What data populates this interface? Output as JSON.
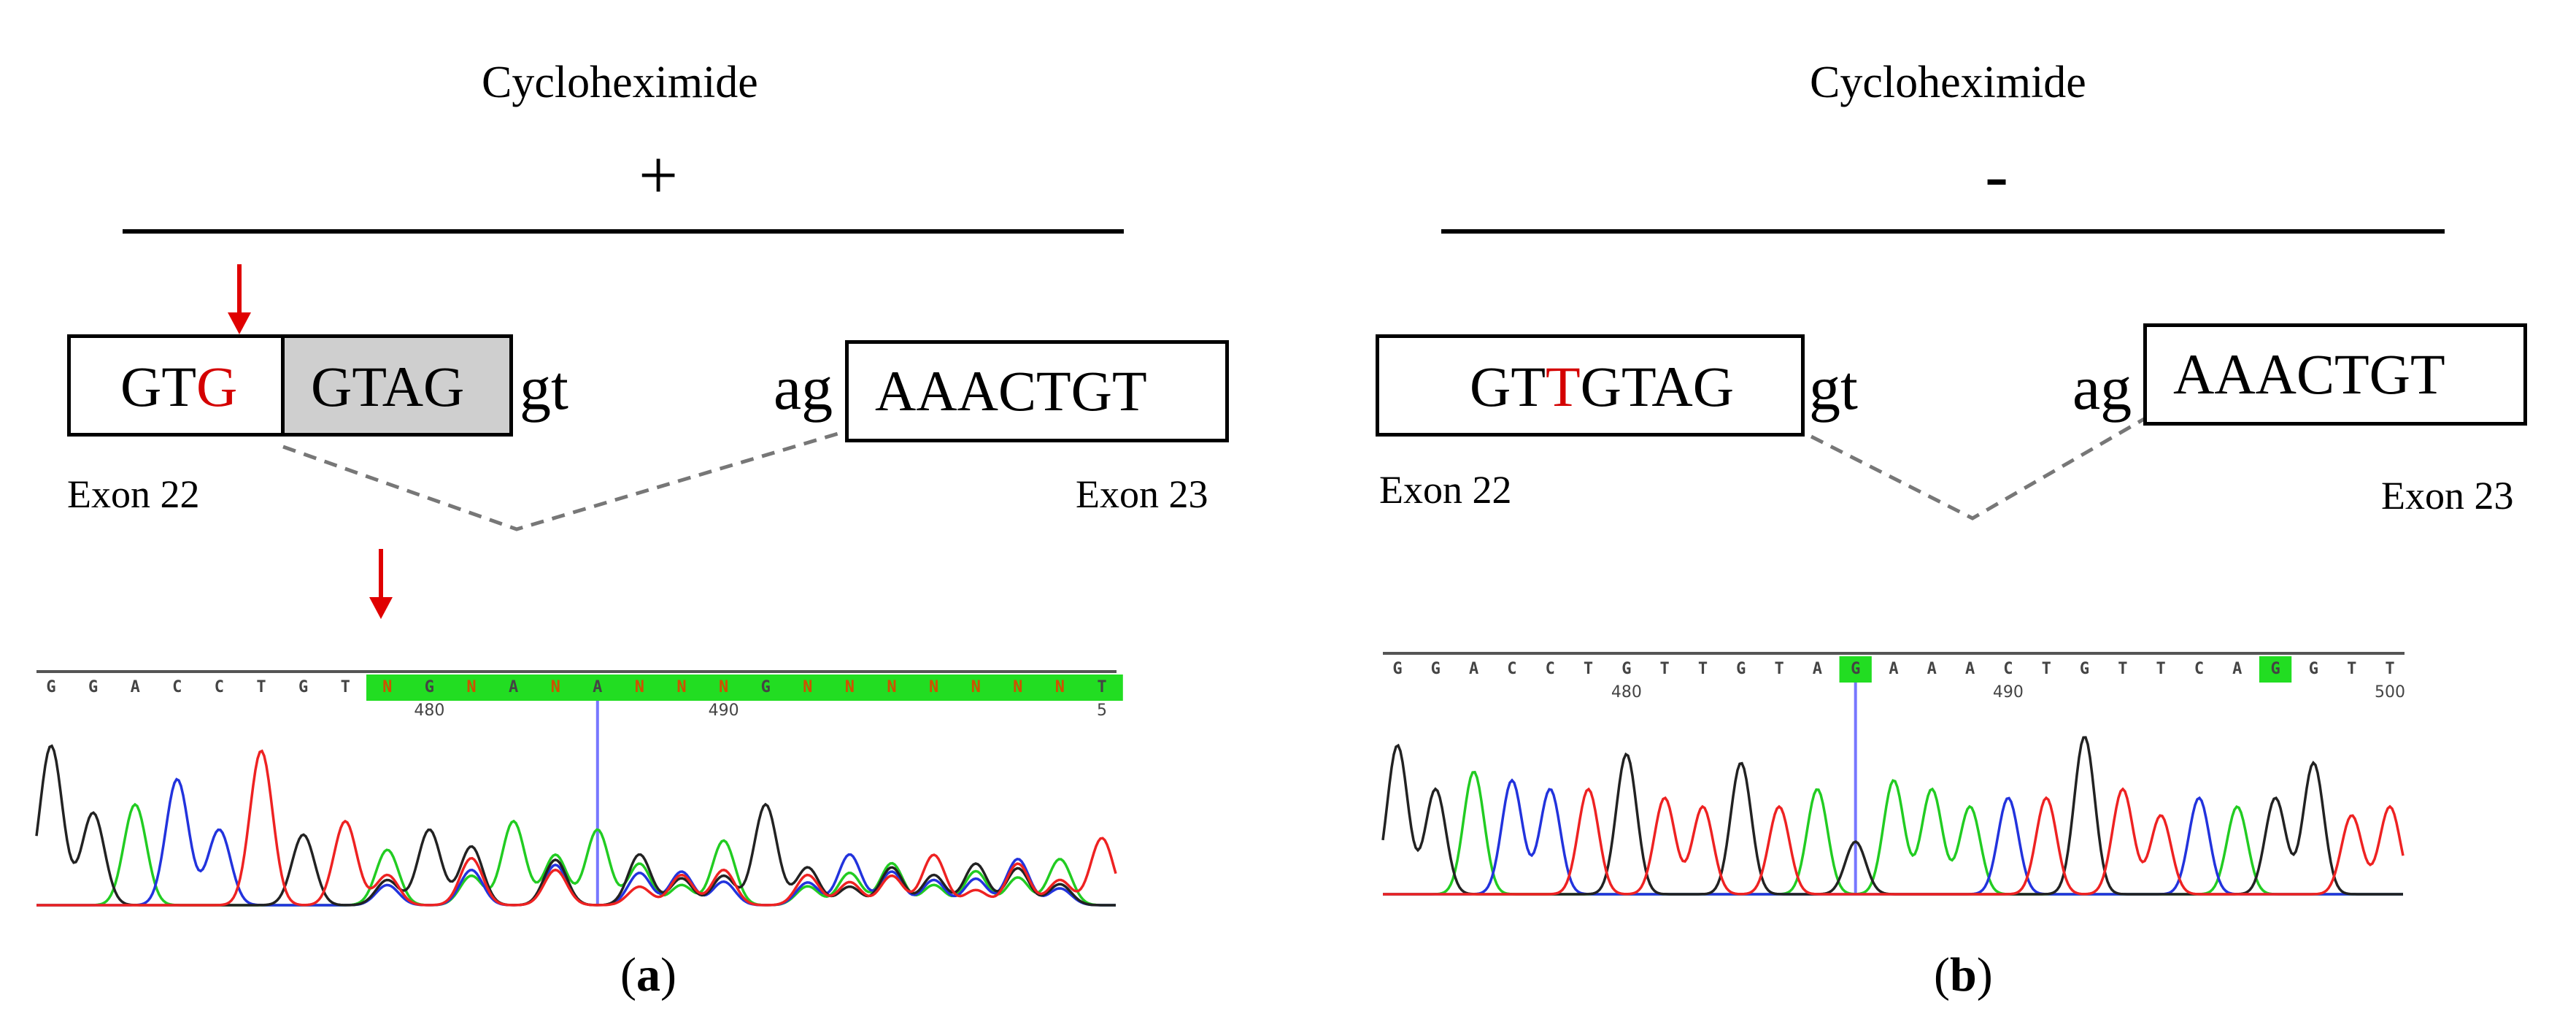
{
  "panel_a": {
    "title": "Cycloheximide",
    "sign": "+",
    "exon22": {
      "seq_prefix": "GT",
      "seq_mut": "G",
      "retained": "GTAG",
      "label": "Exon 22"
    },
    "intron_start": "gt",
    "intron_end": "ag",
    "exon23": {
      "seq": "AAACTGT",
      "label": "Exon 23"
    },
    "chromatogram": {
      "bases": [
        "G",
        "G",
        "A",
        "C",
        "C",
        "T",
        "G",
        "T",
        "N",
        "G",
        "N",
        "A",
        "N",
        "A",
        "N",
        "N",
        "N",
        "G",
        "N",
        "N",
        "N",
        "N",
        "N",
        "N",
        "N",
        "T"
      ],
      "positions": [
        "480",
        "490",
        "5"
      ]
    },
    "caption_open": "(",
    "caption_letter": "a",
    "caption_close": ")"
  },
  "panel_b": {
    "title": "Cycloheximide",
    "sign": "-",
    "exon22": {
      "seq_prefix": "GT",
      "seq_mut": "T",
      "seq_suffix": "GTAG",
      "label": "Exon 22"
    },
    "intron_start": "gt",
    "intron_end": "ag",
    "exon23": {
      "seq": "AAACTGT",
      "label": "Exon 23"
    },
    "chromatogram": {
      "bases": [
        "G",
        "G",
        "A",
        "C",
        "C",
        "T",
        "G",
        "T",
        "T",
        "G",
        "T",
        "A",
        "G",
        "A",
        "A",
        "A",
        "C",
        "T",
        "G",
        "T",
        "T",
        "C",
        "A",
        "G",
        "G",
        "T",
        "T"
      ],
      "positions": [
        "480",
        "490",
        "500"
      ]
    },
    "caption_open": "(",
    "caption_letter": "b",
    "caption_close": ")"
  },
  "colors": {
    "mutation": "#d40000",
    "arrow": "#e00000",
    "trace_A": "#22cc22",
    "trace_C": "#2233dd",
    "trace_G": "#222222",
    "trace_T": "#ee2222",
    "highlight": "#22dd22",
    "cursor": "#7777ff",
    "retained_exon_fill": "#cfcfcf"
  }
}
